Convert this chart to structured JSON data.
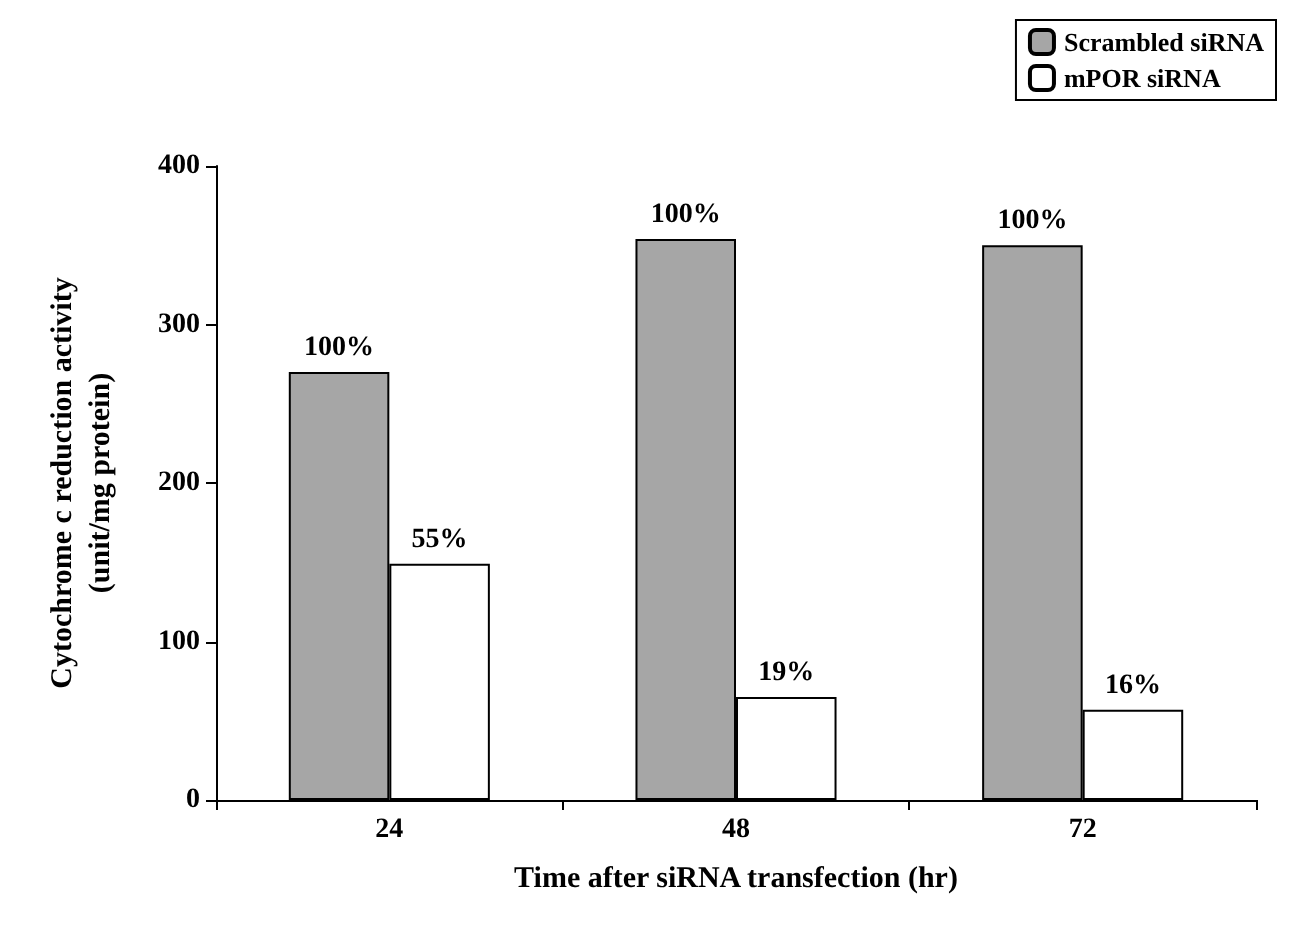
{
  "chart_data": {
    "type": "bar",
    "xlabel": "Time after siRNA transfection (hr)",
    "ylabel": "Cytochrome c reduction activity\n(unit/mg protein)",
    "categories": [
      "24",
      "48",
      "72"
    ],
    "series": [
      {
        "name": "Scrambled siRNA",
        "color": "#a6a6a6",
        "values": [
          270,
          354,
          350
        ]
      },
      {
        "name": "mPOR siRNA",
        "color": "#ffffff",
        "values": [
          149,
          65,
          57
        ]
      }
    ],
    "annotations": [
      {
        "text": "100%",
        "x": "24",
        "y": 270
      },
      {
        "text": "55%",
        "x": "24",
        "y": 149
      },
      {
        "text": "100%",
        "x": "48",
        "y": 354
      },
      {
        "text": "19%",
        "x": "48",
        "y": 65
      },
      {
        "text": "100%",
        "x": "72",
        "y": 350
      },
      {
        "text": "16%",
        "x": "72",
        "y": 57
      }
    ],
    "ylim": [
      0,
      400
    ],
    "yticks": [
      0,
      100,
      200,
      300,
      400
    ],
    "grid": false,
    "legend": "top right"
  }
}
